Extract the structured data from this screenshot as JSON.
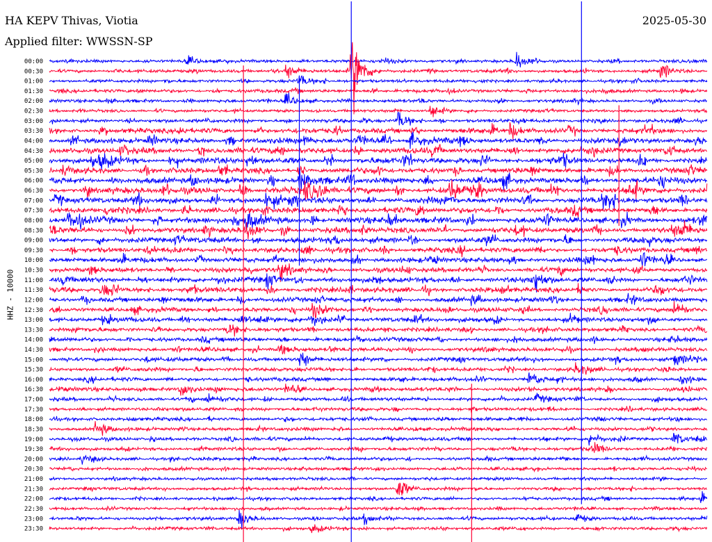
{
  "header": {
    "title": "HA KEPV Thivas, Viotia",
    "filter": "Applied filter: WWSSN-SP",
    "date": "2025-05-30",
    "channel": "HHZ - 10000"
  },
  "colors": {
    "trace_a": "#0000ff",
    "trace_b": "#ff0033",
    "background": "#ffffff"
  },
  "chart_data": {
    "type": "line",
    "chart_kind": "helicorder",
    "series": [
      {
        "color": "#0000ff"
      },
      {
        "color": "#ff0033"
      }
    ],
    "y_ticks": [
      "00:00",
      "00:30",
      "01:00",
      "01:30",
      "02:00",
      "02:30",
      "03:00",
      "03:30",
      "04:00",
      "04:30",
      "05:00",
      "05:30",
      "06:00",
      "06:30",
      "07:00",
      "07:30",
      "08:00",
      "08:30",
      "09:00",
      "09:30",
      "10:00",
      "10:30",
      "11:00",
      "11:30",
      "12:00",
      "12:30",
      "13:00",
      "13:30",
      "14:00",
      "14:30",
      "15:00",
      "15:30",
      "16:00",
      "16:30",
      "17:00",
      "17:30",
      "18:00",
      "18:30",
      "19:00",
      "19:30",
      "20:00",
      "20:30",
      "21:00",
      "21:30",
      "22:00",
      "22:30",
      "23:00",
      "23:30"
    ],
    "row_minutes": 30,
    "row_energy": [
      0.15,
      0.18,
      0.15,
      0.2,
      0.18,
      0.12,
      0.22,
      0.45,
      0.5,
      0.55,
      0.6,
      0.5,
      0.6,
      0.65,
      0.6,
      0.55,
      0.6,
      0.5,
      0.5,
      0.45,
      0.45,
      0.4,
      0.45,
      0.45,
      0.4,
      0.35,
      0.4,
      0.3,
      0.3,
      0.3,
      0.28,
      0.25,
      0.25,
      0.25,
      0.22,
      0.2,
      0.2,
      0.2,
      0.2,
      0.18,
      0.18,
      0.15,
      0.12,
      0.15,
      0.12,
      0.12,
      0.15,
      0.15
    ],
    "events": [
      {
        "row": 0,
        "time": 0.21,
        "amp": 0.6
      },
      {
        "row": 0,
        "time": 0.51,
        "amp": 0.4
      },
      {
        "row": 0,
        "time": 0.71,
        "amp": 1.4
      },
      {
        "row": 1,
        "time": 0.46,
        "amp": 6.5
      },
      {
        "row": 1,
        "time": 0.36,
        "amp": 1.2
      },
      {
        "row": 1,
        "time": 0.93,
        "amp": 1.0
      },
      {
        "row": 2,
        "time": 0.38,
        "amp": 1.0
      },
      {
        "row": 4,
        "time": 0.36,
        "amp": 1.0
      },
      {
        "row": 5,
        "time": 0.58,
        "amp": 1.1
      },
      {
        "row": 6,
        "time": 0.53,
        "amp": 1.5
      },
      {
        "row": 7,
        "time": 0.7,
        "amp": 1.3
      },
      {
        "row": 8,
        "time": 0.47,
        "amp": 1.0
      },
      {
        "row": 8,
        "time": 0.55,
        "amp": 1.2
      },
      {
        "row": 10,
        "time": 0.08,
        "amp": 1.2
      },
      {
        "row": 12,
        "time": 0.38,
        "amp": 1.6
      },
      {
        "row": 13,
        "time": 0.39,
        "amp": 1.5
      },
      {
        "row": 13,
        "time": 0.61,
        "amp": 1.6
      },
      {
        "row": 14,
        "time": 0.33,
        "amp": 1.5
      },
      {
        "row": 14,
        "time": 0.85,
        "amp": 1.3
      },
      {
        "row": 16,
        "time": 0.03,
        "amp": 1.3
      },
      {
        "row": 16,
        "time": 0.3,
        "amp": 1.6
      },
      {
        "row": 17,
        "time": 0.3,
        "amp": 1.4
      },
      {
        "row": 17,
        "time": 0.96,
        "amp": 1.3
      },
      {
        "row": 20,
        "time": 0.9,
        "amp": 1.4
      },
      {
        "row": 21,
        "time": 0.35,
        "amp": 1.3
      },
      {
        "row": 22,
        "time": 0.33,
        "amp": 1.2
      },
      {
        "row": 22,
        "time": 0.74,
        "amp": 1.3
      },
      {
        "row": 23,
        "time": 0.08,
        "amp": 1.2
      },
      {
        "row": 25,
        "time": 0.4,
        "amp": 1.2
      },
      {
        "row": 25,
        "time": 0.95,
        "amp": 1.0
      },
      {
        "row": 26,
        "time": 0.29,
        "amp": 0.9
      },
      {
        "row": 26,
        "time": 0.4,
        "amp": 1.0
      },
      {
        "row": 27,
        "time": 0.27,
        "amp": 0.7
      },
      {
        "row": 29,
        "time": 0.35,
        "amp": 0.8
      },
      {
        "row": 30,
        "time": 0.38,
        "amp": 1.0
      },
      {
        "row": 30,
        "time": 0.95,
        "amp": 1.1
      },
      {
        "row": 31,
        "time": 0.8,
        "amp": 0.8
      },
      {
        "row": 32,
        "time": 0.73,
        "amp": 1.3
      },
      {
        "row": 32,
        "time": 0.96,
        "amp": 1.1
      },
      {
        "row": 33,
        "time": 0.2,
        "amp": 1.2
      },
      {
        "row": 33,
        "time": 0.36,
        "amp": 0.8
      },
      {
        "row": 34,
        "time": 0.24,
        "amp": 0.7
      },
      {
        "row": 34,
        "time": 0.74,
        "amp": 0.7
      },
      {
        "row": 37,
        "time": 0.07,
        "amp": 1.0
      },
      {
        "row": 38,
        "time": 0.82,
        "amp": 1.0
      },
      {
        "row": 38,
        "time": 0.95,
        "amp": 1.2
      },
      {
        "row": 39,
        "time": 0.83,
        "amp": 0.9
      },
      {
        "row": 40,
        "time": 0.05,
        "amp": 0.8
      },
      {
        "row": 43,
        "time": 0.53,
        "amp": 1.6
      },
      {
        "row": 44,
        "time": 0.99,
        "amp": 0.8
      },
      {
        "row": 46,
        "time": 0.29,
        "amp": 1.4
      },
      {
        "row": 46,
        "time": 0.48,
        "amp": 0.9
      },
      {
        "row": 46,
        "time": 0.8,
        "amp": 0.9
      },
      {
        "row": 47,
        "time": 0.4,
        "amp": 0.7
      }
    ],
    "spikes": [
      {
        "time": 0.295,
        "from_row": 1,
        "to_row": 48
      },
      {
        "time": 0.459,
        "from_row": 0,
        "to_row": 48
      },
      {
        "time": 0.38,
        "from_row": 2,
        "to_row": 20
      },
      {
        "time": 0.642,
        "from_row": 33,
        "to_row": 48
      },
      {
        "time": 0.809,
        "from_row": 0,
        "to_row": 44
      },
      {
        "time": 0.866,
        "from_row": 5,
        "to_row": 16
      }
    ]
  }
}
